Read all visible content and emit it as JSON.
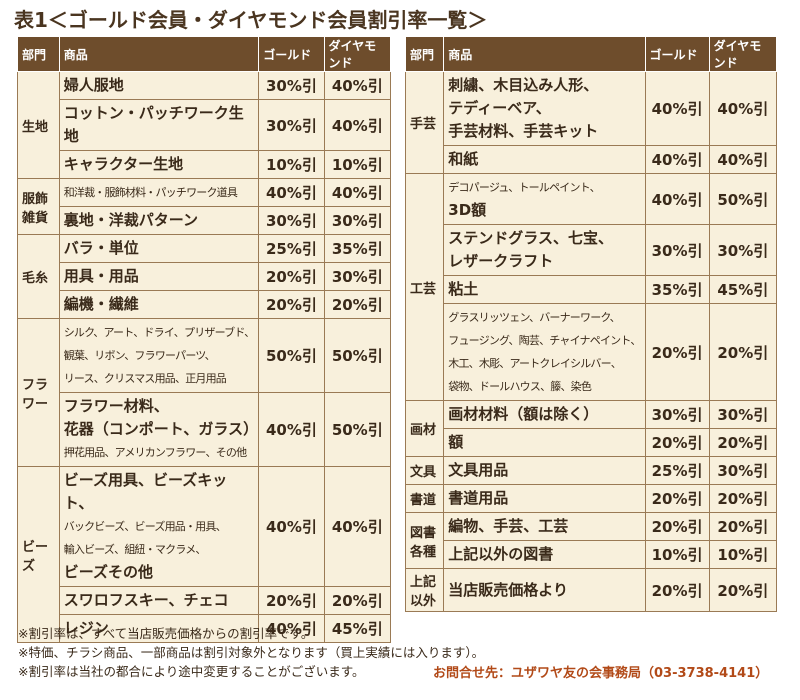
{
  "title": "表1＜ゴールド会員・ダイヤモンド会員割引率一覧＞",
  "tables": [
    {
      "header": [
        "部門",
        "商品",
        "ゴールド",
        "ダイヤモンド"
      ],
      "groups": [
        {
          "dept": [
            "生地"
          ],
          "rows": [
            {
              "item": [
                "婦人服地"
              ],
              "gold": "30%引",
              "diamond": "40%引"
            },
            {
              "item": [
                "コットン・パッチワーク生地"
              ],
              "gold": "30%引",
              "diamond": "40%引"
            },
            {
              "item": [
                "キャラクター生地"
              ],
              "gold": "10%引",
              "diamond": "10%引"
            }
          ]
        },
        {
          "dept": [
            "服飾",
            "雑貨"
          ],
          "rows": [
            {
              "item": [
                "和洋裁・服飾材料・パッチワーク道具"
              ],
              "gold": "40%引",
              "diamond": "40%引"
            },
            {
              "item": [
                "裏地・洋裁パターン"
              ],
              "gold": "30%引",
              "diamond": "30%引"
            }
          ]
        },
        {
          "dept": [
            "毛糸"
          ],
          "rows": [
            {
              "item": [
                "バラ・単位"
              ],
              "gold": "25%引",
              "diamond": "35%引"
            },
            {
              "item": [
                "用具・用品"
              ],
              "gold": "20%引",
              "diamond": "30%引"
            },
            {
              "item": [
                "編機・繊維"
              ],
              "gold": "20%引",
              "diamond": "20%引"
            }
          ]
        },
        {
          "dept": [
            "フラ",
            "ワー"
          ],
          "rows": [
            {
              "item": [
                "シルク、アート、ドライ、プリザーブド、",
                "観葉、リボン、フラワーパーツ、",
                "リース、クリスマス用品、正月用品"
              ],
              "gold": "50%引",
              "diamond": "50%引"
            },
            {
              "item": [
                "フラワー材料、",
                "花器（コンポート、ガラス）",
                "押花用品、アメリカンフラワー、その他"
              ],
              "gold": "40%引",
              "diamond": "50%引"
            }
          ]
        },
        {
          "dept": [
            "ビーズ"
          ],
          "rows": [
            {
              "item": [
                "ビーズ用具、ビーズキット、",
                "バックビーズ、ビーズ用品・用具、",
                "輸入ビーズ、組紐・マクラメ、",
                "ビーズその他"
              ],
              "gold": "40%引",
              "diamond": "40%引"
            },
            {
              "item": [
                "スワロフスキー、チェコ"
              ],
              "gold": "20%引",
              "diamond": "20%引"
            },
            {
              "item": [
                "レジン"
              ],
              "gold": "40%引",
              "diamond": "45%引"
            }
          ]
        }
      ]
    },
    {
      "header": [
        "部門",
        "商品",
        "ゴールド",
        "ダイヤモンド"
      ],
      "groups": [
        {
          "dept": [
            "手芸"
          ],
          "rows": [
            {
              "item": [
                "刺繍、木目込み人形、",
                "テディーベア、",
                "手芸材料、手芸キット"
              ],
              "gold": "40%引",
              "diamond": "40%引"
            },
            {
              "item": [
                "和紙"
              ],
              "gold": "40%引",
              "diamond": "40%引"
            }
          ]
        },
        {
          "dept": [
            "工芸"
          ],
          "rows": [
            {
              "item": [
                "デコパージュ、トールペイント、",
                "3D額"
              ],
              "gold": "40%引",
              "diamond": "50%引"
            },
            {
              "item": [
                "ステンドグラス、七宝、",
                "レザークラフト"
              ],
              "gold": "30%引",
              "diamond": "30%引"
            },
            {
              "item": [
                "粘土"
              ],
              "gold": "35%引",
              "diamond": "45%引"
            },
            {
              "item": [
                "グラスリッツェン、バーナーワーク、",
                "フュージング、陶芸、チャイナペイント、",
                "木工、木彫、アートクレイシルバー、",
                "袋物、ドールハウス、籐、染色"
              ],
              "gold": "20%引",
              "diamond": "20%引"
            }
          ]
        },
        {
          "dept": [
            "画材"
          ],
          "rows": [
            {
              "item": [
                "画材材料（額は除く）"
              ],
              "gold": "30%引",
              "diamond": "30%引"
            },
            {
              "item": [
                "額"
              ],
              "gold": "20%引",
              "diamond": "20%引"
            }
          ]
        },
        {
          "dept": [
            "文具"
          ],
          "rows": [
            {
              "item": [
                "文具用品"
              ],
              "gold": "25%引",
              "diamond": "30%引"
            }
          ]
        },
        {
          "dept": [
            "書道"
          ],
          "rows": [
            {
              "item": [
                "書道用品"
              ],
              "gold": "20%引",
              "diamond": "20%引"
            }
          ]
        },
        {
          "dept": [
            "図書",
            "各種"
          ],
          "rows": [
            {
              "item": [
                "編物、手芸、工芸"
              ],
              "gold": "20%引",
              "diamond": "20%引"
            },
            {
              "item": [
                "上記以外の図書"
              ],
              "gold": "10%引",
              "diamond": "10%引"
            }
          ]
        },
        {
          "dept": [
            "上記",
            "以外"
          ],
          "rows": [
            {
              "item": [
                "当店販売価格より"
              ],
              "gold": "20%引",
              "diamond": "20%引"
            }
          ]
        }
      ]
    }
  ],
  "notes": [
    "※割引率は、すべて当店販売価格からの割引率です。",
    "※特価、チラシ商品、一部商品は割引対象外となります（買上実績には入ります）。",
    "※割引率は当社の都合により途中変更することがございます。"
  ],
  "contact": "お問合せ先：ユザワヤ友の会事務局（03-3738-4141）"
}
